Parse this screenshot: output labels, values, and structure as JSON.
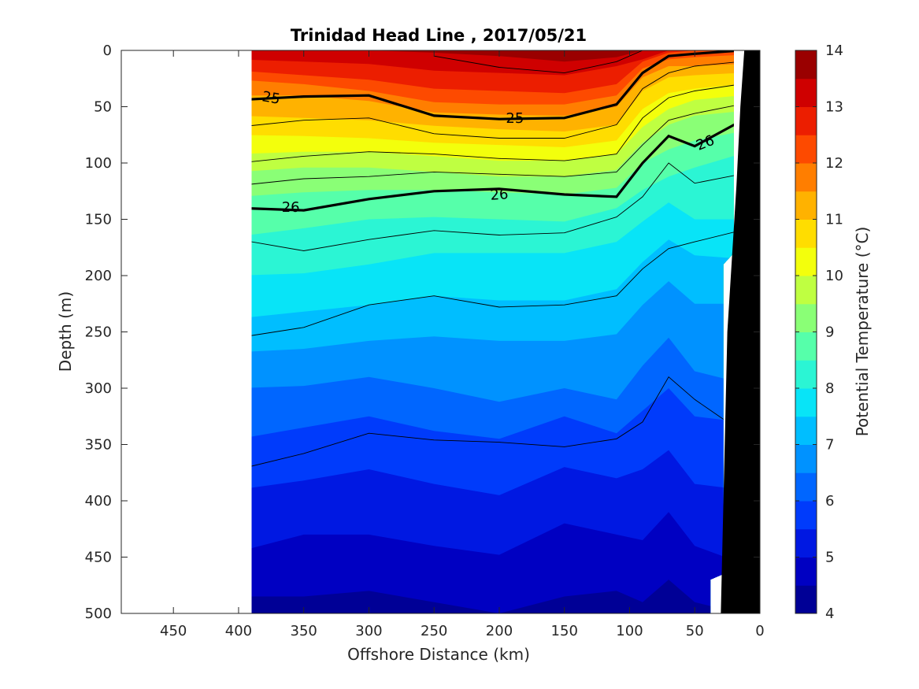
{
  "chart_data": {
    "type": "contour",
    "title": "Trinidad Head Line , 2017/05/21",
    "xlabel": "Offshore Distance (km)",
    "ylabel": "Depth (m)",
    "xlim": [
      490,
      0
    ],
    "ylim": [
      500,
      0
    ],
    "x_direction": "reversed",
    "y_direction": "reversed (depth increases downward)",
    "xticks": [
      "450",
      "400",
      "350",
      "300",
      "250",
      "200",
      "150",
      "100",
      "50",
      "0"
    ],
    "yticks": [
      "0",
      "50",
      "100",
      "150",
      "200",
      "250",
      "300",
      "350",
      "400",
      "450",
      "500"
    ],
    "colorbar": {
      "label": "Potential Temperature (°C)",
      "range": [
        4,
        14
      ],
      "ticks": [
        "4",
        "5",
        "6",
        "7",
        "8",
        "9",
        "10",
        "11",
        "12",
        "13",
        "14"
      ],
      "step": 0.5,
      "colormap": "jet"
    },
    "temperature_field": {
      "description": "Potential temperature isotherm depths (m) at each offshore distance",
      "x": [
        390,
        350,
        300,
        250,
        200,
        150,
        110,
        90,
        70,
        50,
        30
      ],
      "isotherms": [
        {
          "t": 13.5,
          "depth": [
            null,
            null,
            null,
            2,
            5,
            10,
            6,
            null,
            null,
            null,
            null
          ]
        },
        {
          "t": 13.0,
          "depth": [
            8,
            10,
            12,
            18,
            20,
            22,
            14,
            8,
            null,
            null,
            null
          ]
        },
        {
          "t": 12.5,
          "depth": [
            18,
            22,
            26,
            34,
            36,
            38,
            30,
            10,
            2,
            null,
            null
          ]
        },
        {
          "t": 12.0,
          "depth": [
            26,
            30,
            36,
            46,
            48,
            48,
            40,
            16,
            8,
            6,
            4
          ]
        },
        {
          "t": 11.5,
          "depth": [
            40,
            40,
            45,
            55,
            57,
            58,
            50,
            24,
            14,
            14,
            12
          ]
        },
        {
          "t": 11.0,
          "depth": [
            58,
            60,
            62,
            67,
            70,
            72,
            66,
            36,
            24,
            22,
            20
          ]
        },
        {
          "t": 10.5,
          "depth": [
            75,
            76,
            78,
            82,
            84,
            86,
            80,
            52,
            38,
            34,
            30
          ]
        },
        {
          "t": 10.0,
          "depth": [
            92,
            90,
            90,
            94,
            98,
            98,
            92,
            68,
            52,
            44,
            40
          ]
        },
        {
          "t": 9.5,
          "depth": [
            108,
            104,
            104,
            108,
            112,
            112,
            106,
            82,
            66,
            58,
            54
          ]
        },
        {
          "t": 9.0,
          "depth": [
            130,
            126,
            124,
            124,
            126,
            128,
            122,
            100,
            88,
            80,
            72
          ]
        },
        {
          "t": 8.5,
          "depth": [
            165,
            158,
            150,
            148,
            150,
            152,
            140,
            124,
            112,
            104,
            92
          ]
        },
        {
          "t": 8.0,
          "depth": [
            200,
            198,
            190,
            180,
            180,
            180,
            170,
            152,
            135,
            150,
            150
          ]
        },
        {
          "t": 7.5,
          "depth": [
            238,
            232,
            226,
            218,
            222,
            222,
            212,
            188,
            168,
            182,
            185
          ]
        },
        {
          "t": 7.0,
          "depth": [
            268,
            265,
            258,
            254,
            258,
            258,
            252,
            226,
            205,
            225,
            225
          ]
        },
        {
          "t": 6.5,
          "depth": [
            300,
            298,
            290,
            300,
            312,
            300,
            310,
            280,
            255,
            285,
            295
          ]
        },
        {
          "t": 6.0,
          "depth": [
            345,
            335,
            325,
            338,
            345,
            325,
            340,
            320,
            300,
            325,
            330
          ]
        },
        {
          "t": 5.5,
          "depth": [
            390,
            382,
            372,
            385,
            395,
            370,
            380,
            372,
            355,
            385,
            390
          ]
        },
        {
          "t": 5.0,
          "depth": [
            445,
            430,
            430,
            440,
            448,
            420,
            430,
            435,
            410,
            440,
            455
          ]
        },
        {
          "t": 4.5,
          "depth": [
            485,
            485,
            480,
            490,
            500,
            485,
            480,
            490,
            470,
            490,
            500
          ]
        }
      ]
    },
    "density_contours": {
      "description": "Sigma-theta contour depths (m); bold lines labeled 25 and 26",
      "labels": [
        "25",
        "25",
        "26",
        "26",
        "26"
      ],
      "x": [
        390,
        350,
        300,
        250,
        200,
        150,
        110,
        90,
        70,
        50,
        30
      ],
      "lines": [
        {
          "value": 24.5,
          "bold": false,
          "depth": [
            null,
            null,
            null,
            5,
            15,
            20,
            10,
            0,
            null,
            null,
            null
          ]
        },
        {
          "value": 25.0,
          "bold": true,
          "depth": [
            44,
            41,
            40,
            58,
            61,
            60,
            48,
            20,
            5,
            3,
            0
          ]
        },
        {
          "value": 25.25,
          "bold": false,
          "depth": [
            68,
            62,
            60,
            74,
            78,
            78,
            66,
            34,
            20,
            14,
            10
          ]
        },
        {
          "value": 25.5,
          "bold": false,
          "depth": [
            100,
            94,
            90,
            92,
            96,
            98,
            92,
            60,
            42,
            36,
            30
          ]
        },
        {
          "value": 25.75,
          "bold": false,
          "depth": [
            120,
            114,
            112,
            108,
            110,
            112,
            108,
            84,
            62,
            56,
            48
          ]
        },
        {
          "value": 26.0,
          "bold": true,
          "depth": [
            140,
            142,
            132,
            125,
            123,
            128,
            130,
            100,
            76,
            85,
            63
          ]
        },
        {
          "value": 26.25,
          "bold": false,
          "depth": [
            168,
            178,
            168,
            160,
            164,
            162,
            148,
            130,
            100,
            118,
            110
          ]
        },
        {
          "value": 26.5,
          "bold": false,
          "depth": [
            255,
            246,
            226,
            218,
            228,
            226,
            218,
            194,
            176,
            170,
            160
          ]
        },
        {
          "value": 26.75,
          "bold": false,
          "depth": [
            372,
            358,
            340,
            346,
            348,
            352,
            345,
            330,
            290,
            310,
            338
          ]
        }
      ]
    },
    "bathymetry": {
      "description": "Continental shelf/slope shown in black at nearshore edge",
      "points": [
        [
          0,
          0
        ],
        [
          0,
          500
        ],
        [
          30,
          500
        ],
        [
          25,
          250
        ],
        [
          18,
          120
        ],
        [
          15,
          50
        ],
        [
          12,
          0
        ]
      ]
    },
    "colors": {
      "colormap_stops": [
        "#000080",
        "#0000d0",
        "#0040ff",
        "#0090ff",
        "#00e0ff",
        "#40ffc0",
        "#a0ff60",
        "#ffff00",
        "#ffb000",
        "#ff5000",
        "#e00000",
        "#800000"
      ],
      "land": "#000000"
    },
    "grid": false
  }
}
